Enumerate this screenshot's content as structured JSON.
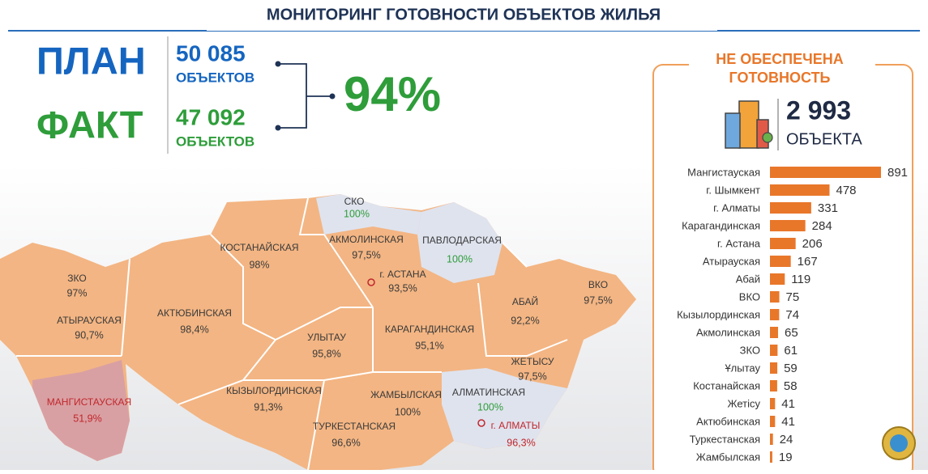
{
  "title": "МОНИТОРИНГ ГОТОВНОСТИ ОБЪЕКТОВ ЖИЛЬЯ",
  "summary": {
    "plan": {
      "label": "ПЛАН",
      "value": "50 085",
      "unit": "ОБЪЕКТОВ"
    },
    "fact": {
      "label": "ФАКТ",
      "value": "47 092",
      "unit": "ОБЪЕКТОВ"
    },
    "percent": "94%"
  },
  "panel": {
    "title_line1": "НЕ ОБЕСПЕЧЕНА",
    "title_line2": "ГОТОВНОСТЬ",
    "total": "2 993",
    "unit": "ОБЪЕКТА"
  },
  "map": {
    "regions": [
      {
        "name": "СКО",
        "value": "100%"
      },
      {
        "name": "КОСТАНАЙСКАЯ",
        "value": "98%"
      },
      {
        "name": "АКМОЛИНСКАЯ",
        "value": "97,5%"
      },
      {
        "name": "ПАВЛОДАРСКАЯ",
        "value": "100%"
      },
      {
        "name": "г. АСТАНА",
        "value": "93,5%"
      },
      {
        "name": "ЗКО",
        "value": "97%"
      },
      {
        "name": "АКТЮБИНСКАЯ",
        "value": "98,4%"
      },
      {
        "name": "АТЫРАУСКАЯ",
        "value": "90,7%"
      },
      {
        "name": "АБАЙ",
        "value": "92,2%"
      },
      {
        "name": "ВКО",
        "value": "97,5%"
      },
      {
        "name": "УЛЫТАУ",
        "value": "95,8%"
      },
      {
        "name": "КАРАГАНДИНСКАЯ",
        "value": "95,1%"
      },
      {
        "name": "ЖЕТЫСУ",
        "value": "97,5%"
      },
      {
        "name": "МАНГИСТАУСКАЯ",
        "value": "51,9%"
      },
      {
        "name": "КЫЗЫЛОРДИНСКАЯ",
        "value": "91,3%"
      },
      {
        "name": "ЖАМБЫЛСКАЯ",
        "value": "100%"
      },
      {
        "name": "АЛМАТИНСКАЯ",
        "value": "100%"
      },
      {
        "name": "ТУРКЕСТАНСКАЯ",
        "value": "96,6%"
      },
      {
        "name": "г. АЛМАТЫ",
        "value": "96,3%"
      }
    ]
  },
  "chart_data": {
    "type": "bar",
    "orientation": "horizontal",
    "color": "#e8772a",
    "categories": [
      "Мангистауская",
      "г. Шымкент",
      "г. Алматы",
      "Карагандинская",
      "г. Астана",
      "Атырауская",
      "Абай",
      "ВКО",
      "Кызылординская",
      "Акмолинская",
      "ЗКО",
      "Ұлытау",
      "Костанайская",
      "Жетісу",
      "Актюбинская",
      "Туркестанская",
      "Жамбылская"
    ],
    "values": [
      891,
      478,
      331,
      284,
      206,
      167,
      119,
      75,
      74,
      65,
      61,
      59,
      58,
      41,
      41,
      24,
      19
    ]
  }
}
